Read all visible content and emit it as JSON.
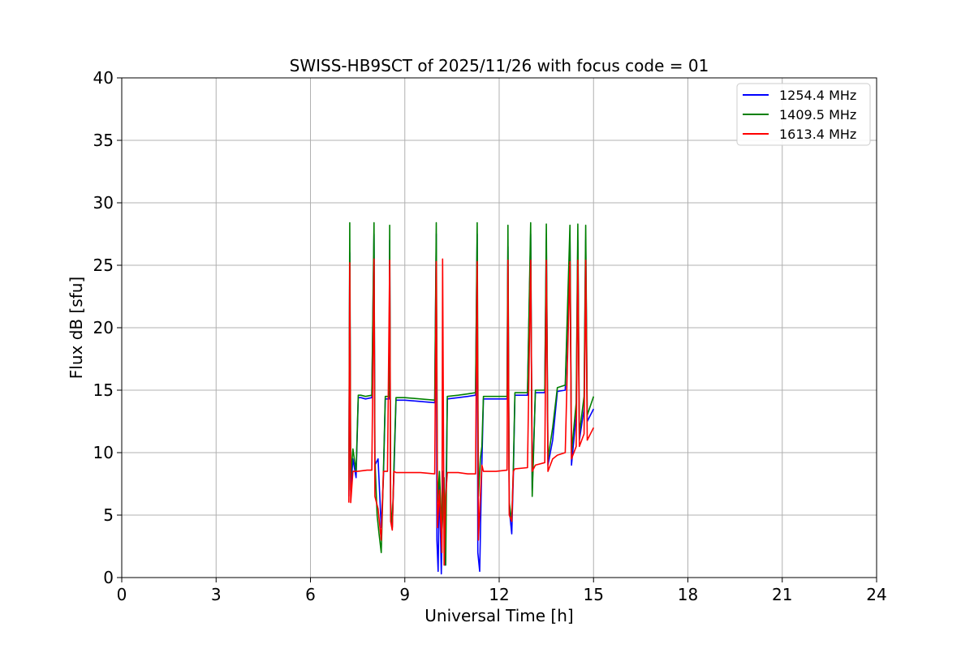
{
  "chart_data": {
    "type": "line",
    "title": "SWISS-HB9SCT of 2025/11/26 with focus code = 01",
    "xlabel": "Universal Time [h]",
    "ylabel": "Flux dB [sfu]",
    "xlim": [
      0,
      24
    ],
    "ylim": [
      0,
      40
    ],
    "xticks": [
      0,
      3,
      6,
      9,
      12,
      15,
      18,
      21,
      24
    ],
    "yticks": [
      0,
      5,
      10,
      15,
      20,
      25,
      30,
      35,
      40
    ],
    "xtick_labels": [
      "0",
      "3",
      "6",
      "9",
      "12",
      "15",
      "18",
      "21",
      "24"
    ],
    "ytick_labels": [
      "0",
      "5",
      "10",
      "15",
      "20",
      "25",
      "30",
      "35",
      "40"
    ],
    "grid": true,
    "legend_position": "top-right",
    "series": [
      {
        "name": "1254.4 MHz",
        "color": "#0000ff",
        "points": [
          [
            7.22,
            6.5
          ],
          [
            7.25,
            26.0
          ],
          [
            7.28,
            7.0
          ],
          [
            7.35,
            9.5
          ],
          [
            7.45,
            8.0
          ],
          [
            7.52,
            14.4
          ],
          [
            7.6,
            14.4
          ],
          [
            7.75,
            14.3
          ],
          [
            7.95,
            14.4
          ],
          [
            8.02,
            27.5
          ],
          [
            8.05,
            9.0
          ],
          [
            8.15,
            9.5
          ],
          [
            8.25,
            4.0
          ],
          [
            8.32,
            8.0
          ],
          [
            8.38,
            14.3
          ],
          [
            8.5,
            14.3
          ],
          [
            8.52,
            27.0
          ],
          [
            8.55,
            5.0
          ],
          [
            8.6,
            4.0
          ],
          [
            8.65,
            8.0
          ],
          [
            8.72,
            14.2
          ],
          [
            9.0,
            14.2
          ],
          [
            9.5,
            14.1
          ],
          [
            9.95,
            14.0
          ],
          [
            10.0,
            27.5
          ],
          [
            10.02,
            3.0
          ],
          [
            10.06,
            0.5
          ],
          [
            10.1,
            8.0
          ],
          [
            10.16,
            0.3
          ],
          [
            10.22,
            8.5
          ],
          [
            10.28,
            1.0
          ],
          [
            10.35,
            14.3
          ],
          [
            10.7,
            14.4
          ],
          [
            11.0,
            14.5
          ],
          [
            11.25,
            14.6
          ],
          [
            11.3,
            27.5
          ],
          [
            11.32,
            2.0
          ],
          [
            11.38,
            0.5
          ],
          [
            11.43,
            7.0
          ],
          [
            11.5,
            14.3
          ],
          [
            11.9,
            14.3
          ],
          [
            12.25,
            14.3
          ],
          [
            12.28,
            26.5
          ],
          [
            12.32,
            5.5
          ],
          [
            12.4,
            3.5
          ],
          [
            12.45,
            8.0
          ],
          [
            12.5,
            14.6
          ],
          [
            12.9,
            14.6
          ],
          [
            13.0,
            27.5
          ],
          [
            13.05,
            7.0
          ],
          [
            13.15,
            14.8
          ],
          [
            13.45,
            14.8
          ],
          [
            13.5,
            27.0
          ],
          [
            13.55,
            9.0
          ],
          [
            13.7,
            11.0
          ],
          [
            13.85,
            14.9
          ],
          [
            14.1,
            15.0
          ],
          [
            14.25,
            27.0
          ],
          [
            14.3,
            9.0
          ],
          [
            14.45,
            13.0
          ],
          [
            14.5,
            27.0
          ],
          [
            14.55,
            11.0
          ],
          [
            14.7,
            13.5
          ],
          [
            14.75,
            27.0
          ],
          [
            14.8,
            12.5
          ],
          [
            15.0,
            13.5
          ]
        ]
      },
      {
        "name": "1409.5 MHz",
        "color": "#008000",
        "points": [
          [
            7.22,
            7.0
          ],
          [
            7.25,
            28.4
          ],
          [
            7.28,
            8.0
          ],
          [
            7.35,
            10.3
          ],
          [
            7.45,
            8.5
          ],
          [
            7.52,
            14.6
          ],
          [
            7.6,
            14.6
          ],
          [
            7.75,
            14.5
          ],
          [
            7.95,
            14.6
          ],
          [
            8.02,
            28.4
          ],
          [
            8.05,
            9.5
          ],
          [
            8.12,
            5.0
          ],
          [
            8.18,
            3.5
          ],
          [
            8.25,
            2.0
          ],
          [
            8.32,
            8.5
          ],
          [
            8.38,
            14.5
          ],
          [
            8.5,
            14.5
          ],
          [
            8.52,
            28.2
          ],
          [
            8.55,
            6.0
          ],
          [
            8.6,
            4.0
          ],
          [
            8.65,
            8.6
          ],
          [
            8.72,
            14.4
          ],
          [
            9.0,
            14.4
          ],
          [
            9.5,
            14.3
          ],
          [
            9.95,
            14.2
          ],
          [
            10.0,
            28.4
          ],
          [
            10.04,
            6.0
          ],
          [
            10.1,
            8.5
          ],
          [
            10.18,
            3.5
          ],
          [
            10.25,
            8.0
          ],
          [
            10.3,
            1.0
          ],
          [
            10.35,
            14.5
          ],
          [
            10.7,
            14.6
          ],
          [
            11.0,
            14.7
          ],
          [
            11.25,
            14.8
          ],
          [
            11.3,
            28.4
          ],
          [
            11.34,
            6.5
          ],
          [
            11.4,
            9.5
          ],
          [
            11.45,
            10.5
          ],
          [
            11.5,
            14.5
          ],
          [
            11.9,
            14.5
          ],
          [
            12.25,
            14.5
          ],
          [
            12.28,
            28.2
          ],
          [
            12.32,
            6.0
          ],
          [
            12.4,
            4.5
          ],
          [
            12.45,
            8.6
          ],
          [
            12.5,
            14.8
          ],
          [
            12.9,
            14.8
          ],
          [
            13.0,
            28.4
          ],
          [
            13.05,
            6.5
          ],
          [
            13.1,
            10.5
          ],
          [
            13.15,
            15.0
          ],
          [
            13.45,
            15.0
          ],
          [
            13.5,
            28.3
          ],
          [
            13.55,
            9.5
          ],
          [
            13.7,
            12.0
          ],
          [
            13.85,
            15.2
          ],
          [
            14.1,
            15.4
          ],
          [
            14.25,
            28.2
          ],
          [
            14.3,
            10.0
          ],
          [
            14.45,
            14.0
          ],
          [
            14.5,
            28.3
          ],
          [
            14.55,
            11.5
          ],
          [
            14.7,
            14.5
          ],
          [
            14.75,
            28.2
          ],
          [
            14.8,
            13.0
          ],
          [
            15.0,
            14.5
          ]
        ]
      },
      {
        "name": "1613.4 MHz",
        "color": "#ff0000",
        "points": [
          [
            7.22,
            6.0
          ],
          [
            7.25,
            25.2
          ],
          [
            7.28,
            6.0
          ],
          [
            7.35,
            8.5
          ],
          [
            7.5,
            8.5
          ],
          [
            7.8,
            8.6
          ],
          [
            7.95,
            8.6
          ],
          [
            8.02,
            25.5
          ],
          [
            8.05,
            6.5
          ],
          [
            8.15,
            5.5
          ],
          [
            8.25,
            3.0
          ],
          [
            8.32,
            8.5
          ],
          [
            8.45,
            8.5
          ],
          [
            8.52,
            25.4
          ],
          [
            8.55,
            4.5
          ],
          [
            8.6,
            3.8
          ],
          [
            8.65,
            8.5
          ],
          [
            8.72,
            8.4
          ],
          [
            9.0,
            8.4
          ],
          [
            9.5,
            8.4
          ],
          [
            9.95,
            8.3
          ],
          [
            10.0,
            25.3
          ],
          [
            10.04,
            4.0
          ],
          [
            10.1,
            7.0
          ],
          [
            10.18,
            2.0
          ],
          [
            10.2,
            25.5
          ],
          [
            10.25,
            1.0
          ],
          [
            10.3,
            6.5
          ],
          [
            10.35,
            8.4
          ],
          [
            10.7,
            8.4
          ],
          [
            11.0,
            8.3
          ],
          [
            11.25,
            8.3
          ],
          [
            11.3,
            25.3
          ],
          [
            11.34,
            3.0
          ],
          [
            11.4,
            6.5
          ],
          [
            11.45,
            9.0
          ],
          [
            11.5,
            8.5
          ],
          [
            11.9,
            8.5
          ],
          [
            12.25,
            8.6
          ],
          [
            12.28,
            25.4
          ],
          [
            12.32,
            5.0
          ],
          [
            12.4,
            4.5
          ],
          [
            12.45,
            8.5
          ],
          [
            12.5,
            8.7
          ],
          [
            12.9,
            8.8
          ],
          [
            13.0,
            25.4
          ],
          [
            13.05,
            8.5
          ],
          [
            13.15,
            9.0
          ],
          [
            13.45,
            9.2
          ],
          [
            13.5,
            25.4
          ],
          [
            13.55,
            8.5
          ],
          [
            13.7,
            9.5
          ],
          [
            13.85,
            9.8
          ],
          [
            14.1,
            10.0
          ],
          [
            14.25,
            25.3
          ],
          [
            14.3,
            9.5
          ],
          [
            14.45,
            10.5
          ],
          [
            14.5,
            25.4
          ],
          [
            14.55,
            10.5
          ],
          [
            14.7,
            11.5
          ],
          [
            14.75,
            25.4
          ],
          [
            14.8,
            11.0
          ],
          [
            15.0,
            12.0
          ]
        ]
      }
    ]
  }
}
